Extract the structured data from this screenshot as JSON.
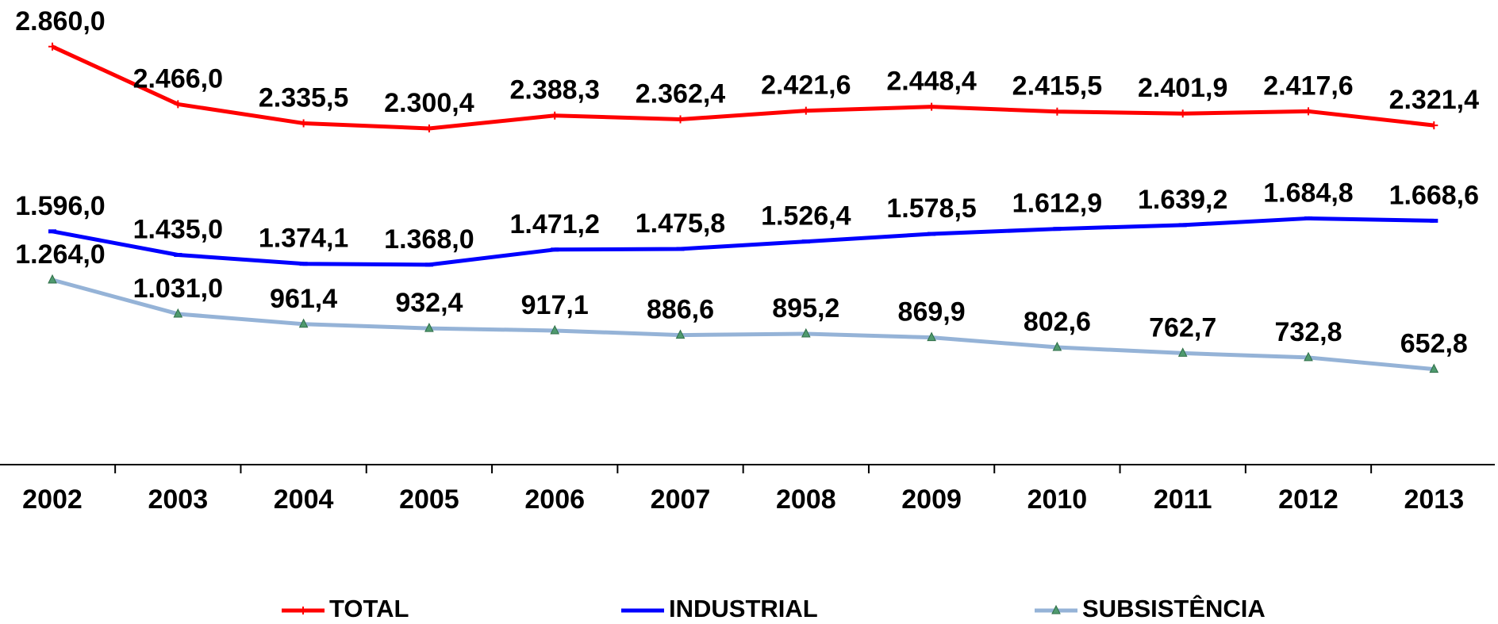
{
  "chart_data": {
    "type": "line",
    "categories": [
      "2002",
      "2003",
      "2004",
      "2005",
      "2006",
      "2007",
      "2008",
      "2009",
      "2010",
      "2011",
      "2012",
      "2013"
    ],
    "ylim": [
      0,
      3000
    ],
    "series": [
      {
        "name": "TOTAL",
        "color": "#ff0000",
        "values": [
          2860.0,
          2466.0,
          2335.5,
          2300.4,
          2388.3,
          2362.4,
          2421.6,
          2448.4,
          2415.5,
          2401.9,
          2417.6,
          2321.4
        ],
        "value_labels": [
          "2.860,0",
          "2.466,0",
          "2.335,5",
          "2.300,4",
          "2.388,3",
          "2.362,4",
          "2.421,6",
          "2.448,4",
          "2.415,5",
          "2.401,9",
          "2.417,6",
          "2.321,4"
        ]
      },
      {
        "name": "INDUSTRIAL",
        "color": "#0000ff",
        "values": [
          1596.0,
          1435.0,
          1374.1,
          1368.0,
          1471.2,
          1475.8,
          1526.4,
          1578.5,
          1612.9,
          1639.2,
          1684.8,
          1668.6
        ],
        "value_labels": [
          "1.596,0",
          "1.435,0",
          "1.374,1",
          "1.368,0",
          "1.471,2",
          "1.475,8",
          "1.526,4",
          "1.578,5",
          "1.612,9",
          "1.639,2",
          "1.684,8",
          "1.668,6"
        ]
      },
      {
        "name": "SUBSISTÊNCIA",
        "color": "#95b3d7",
        "values": [
          1264.0,
          1031.0,
          961.4,
          932.4,
          917.1,
          886.6,
          895.2,
          869.9,
          802.6,
          762.7,
          732.8,
          652.8
        ],
        "value_labels": [
          "1.264,0",
          "1.031,0",
          "961,4",
          "932,4",
          "917,1",
          "886,6",
          "895,2",
          "869,9",
          "802,6",
          "762,7",
          "732,8",
          "652,8"
        ]
      }
    ],
    "legend": "bottom"
  }
}
